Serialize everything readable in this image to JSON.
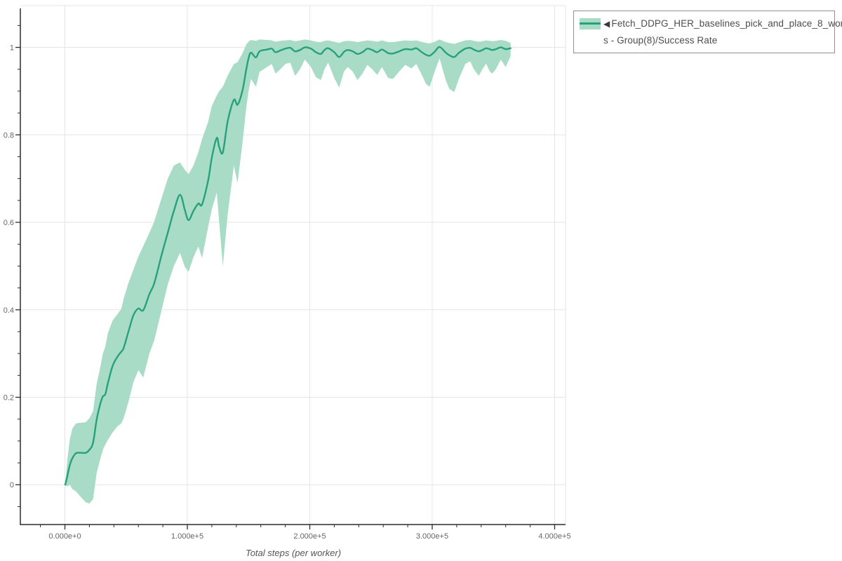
{
  "legend": {
    "marker_glyph": "◀",
    "label_line1": "Fetch_DDPG_HER_baselines_pick_and_place_8_worker",
    "label_line2": "s - Group(8)/Success Rate"
  },
  "chart_data": {
    "type": "line",
    "title": "",
    "xlabel": "Total steps (per worker)",
    "ylabel": "",
    "grid": true,
    "legend_position": "outside-top-right",
    "xlim": [
      -36400,
      408900
    ],
    "ylim": [
      -0.091,
      1.0955
    ],
    "x_ticks": [
      0,
      100000,
      200000,
      300000,
      400000
    ],
    "x_tick_labels": [
      "0.000e+0",
      "1.000e+5",
      "2.000e+5",
      "3.000e+5",
      "4.000e+5"
    ],
    "x_minor_step": 20000,
    "y_ticks": [
      0,
      0.2,
      0.4,
      0.6,
      0.8,
      1
    ],
    "y_tick_labels": [
      "0",
      "0.2",
      "0.4",
      "0.6",
      "0.8",
      "1"
    ],
    "y_minor_step": 0.05,
    "colors": {
      "line": "#27a17b",
      "band": "#a8dcc6",
      "grid": "#e6e6e6",
      "axis": "#2b2b2b",
      "tick_label": "#666666",
      "axis_title": "#555555",
      "legend_border": "#919191",
      "legend_text": "#4d4d4d"
    },
    "series": [
      {
        "name": "Fetch_DDPG_HER_baselines_pick_and_place_8_workers - Group(8)/Success Rate",
        "metric": "Success Rate",
        "points_format": [
          "steps",
          "lower",
          "mean",
          "upper"
        ],
        "points": [
          [
            300,
            0.0,
            0.0,
            0.004
          ],
          [
            2000,
            -0.004,
            0.02,
            0.058
          ],
          [
            4000,
            0.0,
            0.045,
            0.104
          ],
          [
            6000,
            -0.01,
            0.06,
            0.128
          ],
          [
            9000,
            -0.015,
            0.072,
            0.14
          ],
          [
            13000,
            -0.028,
            0.073,
            0.142
          ],
          [
            17000,
            -0.04,
            0.073,
            0.143
          ],
          [
            20000,
            -0.043,
            0.08,
            0.152
          ],
          [
            23000,
            -0.033,
            0.096,
            0.168
          ],
          [
            26000,
            0.028,
            0.15,
            0.232
          ],
          [
            29000,
            0.06,
            0.186,
            0.27
          ],
          [
            31000,
            0.08,
            0.202,
            0.3
          ],
          [
            33000,
            0.092,
            0.207,
            0.316
          ],
          [
            35000,
            0.102,
            0.231,
            0.346
          ],
          [
            39000,
            0.12,
            0.272,
            0.376
          ],
          [
            43000,
            0.134,
            0.293,
            0.39
          ],
          [
            46000,
            0.14,
            0.304,
            0.402
          ],
          [
            48000,
            0.152,
            0.313,
            0.426
          ],
          [
            52000,
            0.19,
            0.351,
            0.462
          ],
          [
            56000,
            0.235,
            0.388,
            0.492
          ],
          [
            60000,
            0.262,
            0.403,
            0.522
          ],
          [
            64000,
            0.245,
            0.399,
            0.546
          ],
          [
            69000,
            0.3,
            0.436,
            0.576
          ],
          [
            73000,
            0.33,
            0.461,
            0.602
          ],
          [
            79000,
            0.4,
            0.526,
            0.656
          ],
          [
            84000,
            0.458,
            0.576,
            0.7
          ],
          [
            89000,
            0.5,
            0.626,
            0.73
          ],
          [
            94000,
            0.53,
            0.663,
            0.737
          ],
          [
            98000,
            0.498,
            0.628,
            0.72
          ],
          [
            101000,
            0.487,
            0.605,
            0.71
          ],
          [
            105000,
            0.52,
            0.626,
            0.73
          ],
          [
            109000,
            0.545,
            0.643,
            0.76
          ],
          [
            112000,
            0.518,
            0.641,
            0.79
          ],
          [
            117000,
            0.59,
            0.696,
            0.83
          ],
          [
            120000,
            0.63,
            0.748,
            0.866
          ],
          [
            124000,
            0.668,
            0.793,
            0.89
          ],
          [
            126000,
            0.6,
            0.772,
            0.9
          ],
          [
            129000,
            0.5,
            0.76,
            0.91
          ],
          [
            133000,
            0.62,
            0.832,
            0.936
          ],
          [
            138000,
            0.73,
            0.88,
            0.962
          ],
          [
            141000,
            0.69,
            0.869,
            0.966
          ],
          [
            145000,
            0.78,
            0.901,
            0.986
          ],
          [
            148000,
            0.86,
            0.948,
            1.006
          ],
          [
            150000,
            0.9,
            0.975,
            1.013
          ],
          [
            152000,
            0.928,
            0.988,
            1.017
          ],
          [
            156000,
            0.91,
            0.977,
            1.015
          ],
          [
            159000,
            0.944,
            0.991,
            1.018
          ],
          [
            165000,
            0.955,
            0.995,
            1.017
          ],
          [
            169000,
            0.962,
            0.997,
            1.016
          ],
          [
            172000,
            0.94,
            0.989,
            1.013
          ],
          [
            176000,
            0.95,
            0.993,
            1.015
          ],
          [
            180000,
            0.962,
            0.997,
            1.016
          ],
          [
            184000,
            0.965,
            0.999,
            1.017
          ],
          [
            188000,
            0.935,
            0.991,
            1.014
          ],
          [
            192000,
            0.95,
            0.994,
            1.016
          ],
          [
            196000,
            0.972,
            1.0,
            1.018
          ],
          [
            201000,
            0.955,
            0.997,
            1.016
          ],
          [
            205000,
            0.932,
            0.989,
            1.013
          ],
          [
            209000,
            0.925,
            0.985,
            1.012
          ],
          [
            212000,
            0.95,
            0.994,
            1.015
          ],
          [
            215000,
            0.965,
            0.998,
            1.016
          ],
          [
            220000,
            0.93,
            0.989,
            1.013
          ],
          [
            224000,
            0.908,
            0.978,
            1.01
          ],
          [
            228000,
            0.945,
            0.99,
            1.014
          ],
          [
            231000,
            0.955,
            0.994,
            1.015
          ],
          [
            235000,
            0.945,
            0.991,
            1.014
          ],
          [
            239000,
            0.925,
            0.985,
            1.012
          ],
          [
            243000,
            0.94,
            0.989,
            1.014
          ],
          [
            247000,
            0.96,
            0.997,
            1.016
          ],
          [
            251000,
            0.95,
            0.994,
            1.015
          ],
          [
            255000,
            0.937,
            0.989,
            1.013
          ],
          [
            259000,
            0.955,
            0.995,
            1.016
          ],
          [
            264000,
            0.93,
            0.987,
            1.012
          ],
          [
            268000,
            0.928,
            0.986,
            1.012
          ],
          [
            273000,
            0.945,
            0.991,
            1.014
          ],
          [
            278000,
            0.96,
            0.996,
            1.016
          ],
          [
            283000,
            0.952,
            0.995,
            1.015
          ],
          [
            287000,
            0.962,
            0.998,
            1.016
          ],
          [
            291000,
            0.94,
            0.99,
            1.013
          ],
          [
            295000,
            0.916,
            0.983,
            1.01
          ],
          [
            298000,
            0.91,
            0.981,
            1.009
          ],
          [
            302000,
            0.945,
            0.99,
            1.013
          ],
          [
            306000,
            0.975,
            1.001,
            1.018
          ],
          [
            311000,
            0.925,
            0.988,
            1.012
          ],
          [
            314000,
            0.905,
            0.982,
            1.01
          ],
          [
            318000,
            0.898,
            0.978,
            1.008
          ],
          [
            322000,
            0.93,
            0.988,
            1.012
          ],
          [
            327000,
            0.962,
            0.997,
            1.016
          ],
          [
            331000,
            0.968,
            0.999,
            1.017
          ],
          [
            334000,
            0.95,
            0.995,
            1.015
          ],
          [
            338000,
            0.935,
            0.991,
            1.013
          ],
          [
            341000,
            0.95,
            0.994,
            1.014
          ],
          [
            344000,
            0.963,
            0.998,
            1.016
          ],
          [
            347000,
            0.945,
            0.996,
            1.015
          ],
          [
            349000,
            0.94,
            0.994,
            1.014
          ],
          [
            352000,
            0.95,
            0.996,
            1.015
          ],
          [
            356000,
            0.972,
            1.0,
            1.017
          ],
          [
            360000,
            0.955,
            0.996,
            1.015
          ],
          [
            364000,
            0.98,
            0.998,
            1.01
          ]
        ]
      }
    ]
  }
}
